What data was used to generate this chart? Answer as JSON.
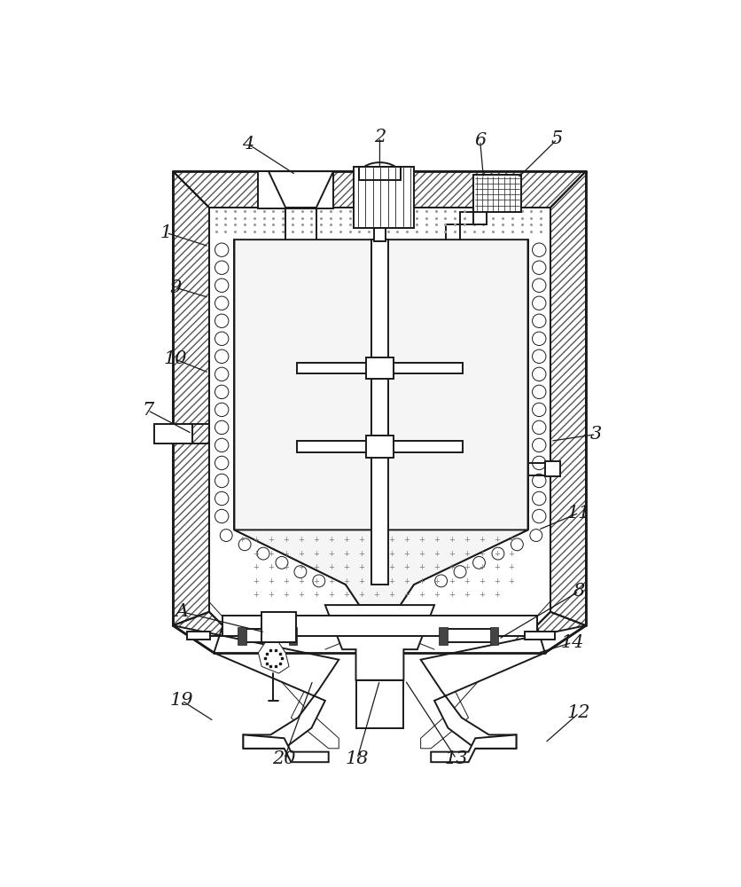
{
  "figure_width": 8.36,
  "figure_height": 10.0,
  "dpi": 100,
  "background_color": "#ffffff",
  "line_color": "#1a1a1a",
  "lw_main": 1.4,
  "lw_thin": 0.7,
  "lw_thick": 2.0
}
